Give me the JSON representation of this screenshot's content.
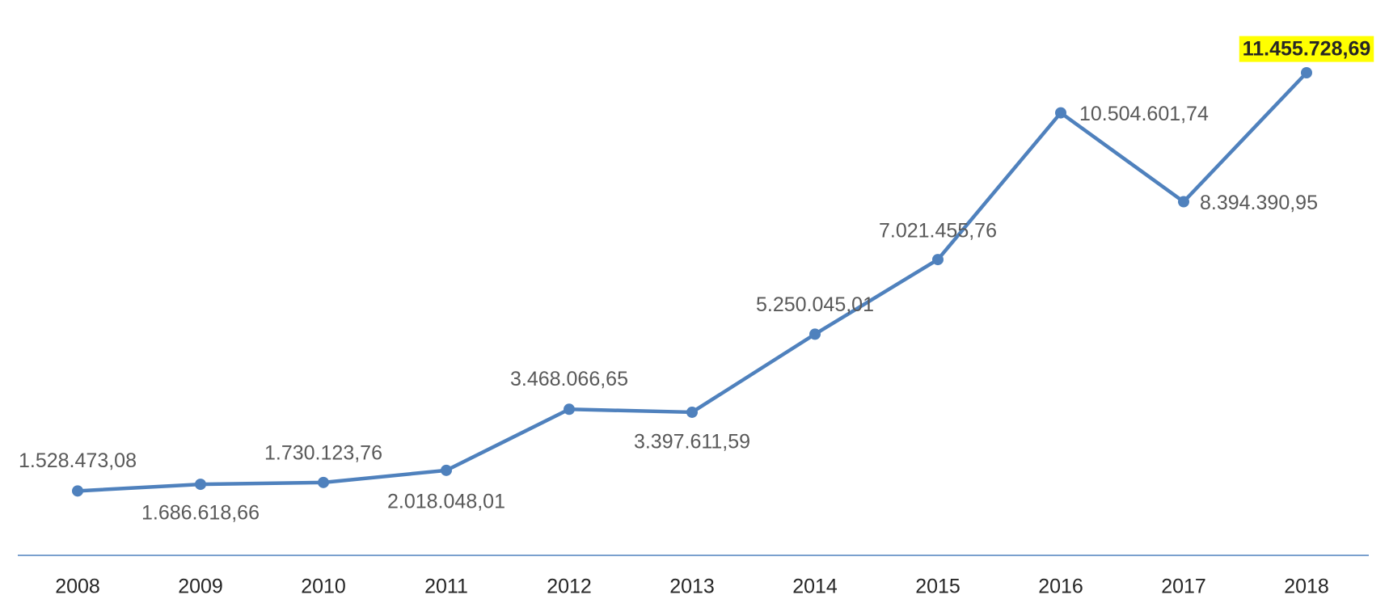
{
  "chart_data": {
    "type": "line",
    "categories": [
      "2008",
      "2009",
      "2010",
      "2011",
      "2012",
      "2013",
      "2014",
      "2015",
      "2016",
      "2017",
      "2018"
    ],
    "series": [
      {
        "color": "#4f81bd",
        "values": [
          1528473.08,
          1686618.66,
          1730123.76,
          2018048.01,
          3468066.65,
          3397611.59,
          5250045.01,
          7021455.76,
          10504601.74,
          8394390.95,
          11455728.69
        ],
        "value_labels": [
          "1.528.473,08",
          "1.686.618,66",
          "1.730.123,76",
          "2.018.048,01",
          "3.468.066,65",
          "3.397.611,59",
          "5.250.045,01",
          "7.021.455,76",
          "10.504.601,74",
          "8.394.390,95",
          "11.455.728,69"
        ]
      }
    ]
  }
}
